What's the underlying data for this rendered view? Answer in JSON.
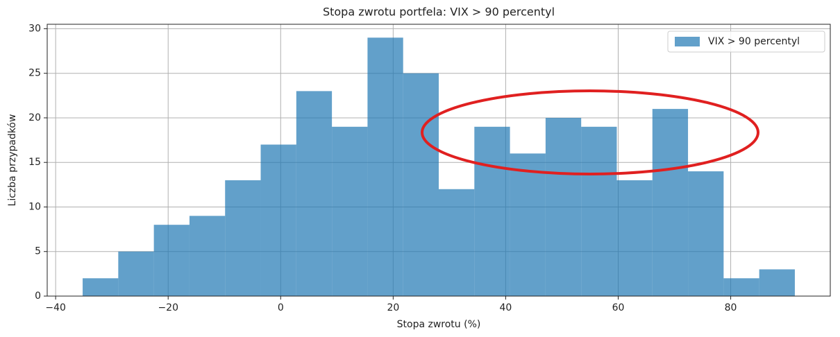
{
  "chart_data": {
    "type": "histogram",
    "title": "Stopa zwrotu portfela: VIX > 90 percentyl",
    "xlabel": "Stopa zwrotu (%)",
    "ylabel": "Liczba przypadków",
    "bins": [
      -35.2,
      -28.87,
      -22.54,
      -16.21,
      -9.88,
      -3.55,
      2.78,
      9.11,
      15.44,
      21.77,
      28.1,
      34.43,
      40.76,
      47.09,
      53.42,
      59.75,
      66.08,
      72.41,
      78.74,
      85.07,
      91.4
    ],
    "series": [
      {
        "name": "VIX > 90 percentyl",
        "color": "#1f77b4",
        "alpha": 0.7,
        "values": [
          2,
          5,
          8,
          9,
          13,
          17,
          23,
          19,
          29,
          25,
          12,
          19,
          16,
          20,
          19,
          13,
          21,
          14,
          2,
          3
        ]
      }
    ],
    "xlim": [
      -41.5,
      97.7
    ],
    "ylim": [
      0,
      30.5
    ],
    "xticks": [
      {
        "value": -40,
        "label": "−40"
      },
      {
        "value": -20,
        "label": "−20"
      },
      0,
      20,
      40,
      60,
      80
    ],
    "yticks": [
      0,
      5,
      10,
      15,
      20,
      25,
      30
    ],
    "grid": true,
    "legend": "upper right"
  }
}
